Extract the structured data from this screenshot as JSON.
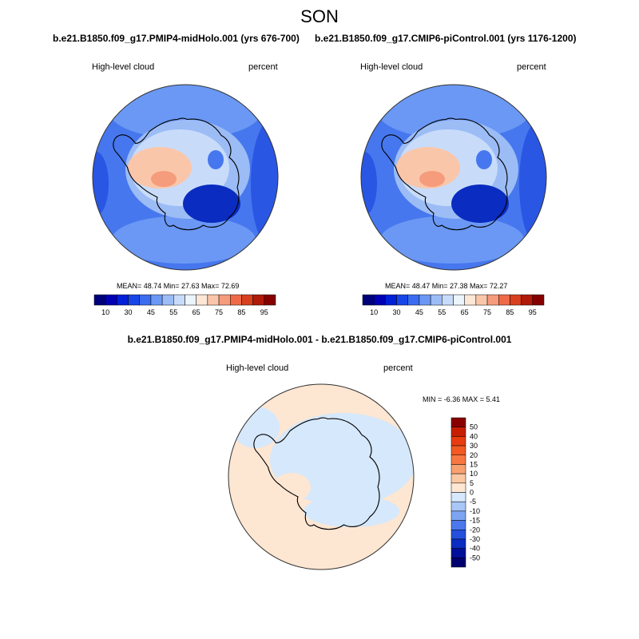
{
  "season": "SON",
  "panels": [
    {
      "title": "b.e21.B1850.f09_g17.PMIP4-midHolo.001 (yrs 676-700)",
      "left_label": "High-level cloud",
      "right_label": "percent",
      "stats": "MEAN=  48.74  Min=  27.63  Max=  72.69"
    },
    {
      "title": "b.e21.B1850.f09_g17.CMIP6-piControl.001 (yrs 1176-1200)",
      "left_label": "High-level cloud",
      "right_label": "percent",
      "stats": "MEAN=  48.47  Min=  27.38  Max=  72.27"
    }
  ],
  "diff_panel": {
    "title": "b.e21.B1850.f09_g17.PMIP4-midHolo.001 - b.e21.B1850.f09_g17.CMIP6-piControl.001",
    "left_label": "High-level cloud",
    "right_label": "percent",
    "stats": "MIN =  -6.36 MAX =   5.41"
  },
  "colorbar_main": {
    "tick_labels": [
      "10",
      "30",
      "45",
      "55",
      "65",
      "75",
      "85",
      "95"
    ],
    "colors": [
      "#00007a",
      "#0000b4",
      "#0020d8",
      "#1646e8",
      "#3a6cf0",
      "#6a98f4",
      "#9cbcf6",
      "#c8dcfa",
      "#ecf4fe",
      "#fde7d6",
      "#fac6aa",
      "#f59c7c",
      "#ee6a48",
      "#d8401e",
      "#b01a08",
      "#860000"
    ]
  },
  "colorbar_diff": {
    "tick_labels": [
      "50",
      "40",
      "30",
      "20",
      "15",
      "10",
      "5",
      "0",
      "-5",
      "-10",
      "-15",
      "-20",
      "-30",
      "-40",
      "-50"
    ],
    "colors": [
      "#8a0000",
      "#c81e00",
      "#e83c10",
      "#f25a22",
      "#f67840",
      "#f9a070",
      "#fcc8a4",
      "#fde6d2",
      "#d6e8fb",
      "#a8c6f6",
      "#7ca4f2",
      "#4c78ec",
      "#2450dc",
      "#0a2cc0",
      "#001098",
      "#000070"
    ]
  },
  "map_colors": {
    "ocean_low": "#2a56e4",
    "ocean_mid": "#4677ee",
    "ocean_high": "#6a98f4",
    "light_blue": "#c8dcfa",
    "pale_blue": "#9cbcf6",
    "pale_red": "#fac6aa",
    "red": "#f59c7c",
    "deep_blue": "#0a2cc0",
    "diff_pos": "#fde6d2",
    "diff_neg": "#d6e8fb"
  }
}
